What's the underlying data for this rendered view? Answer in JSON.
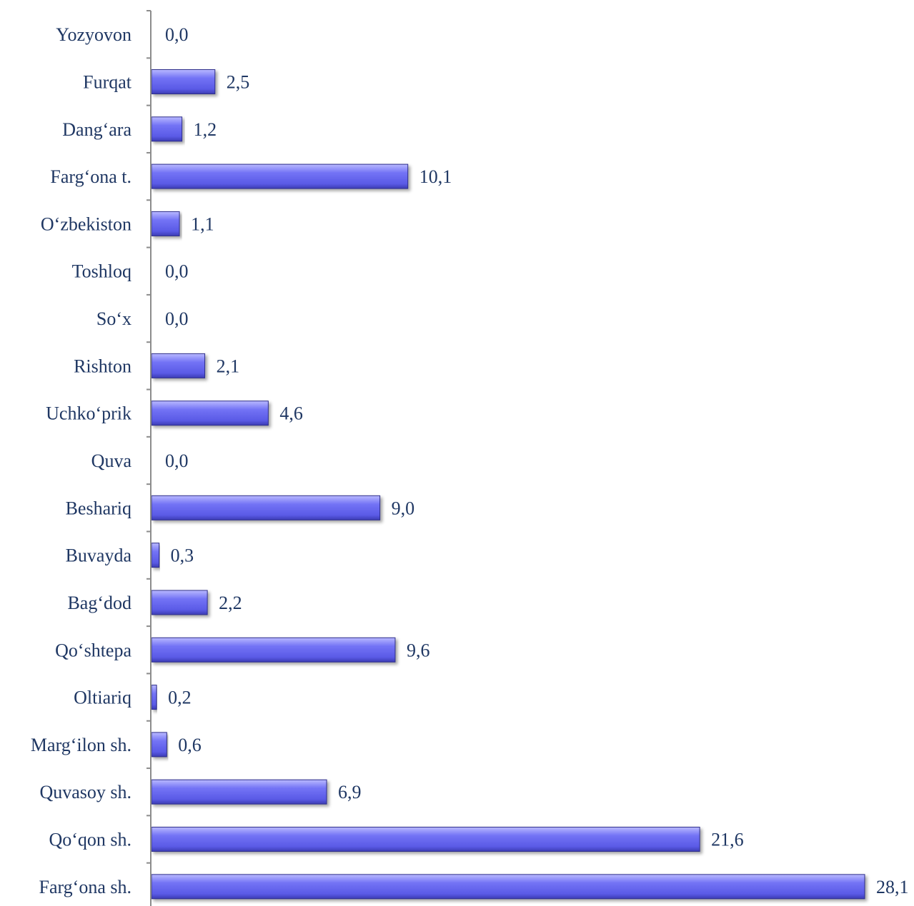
{
  "chart_data": {
    "type": "bar",
    "orientation": "horizontal",
    "title": "",
    "xlabel": "",
    "ylabel": "",
    "xlim": [
      0,
      28.1
    ],
    "grid": false,
    "legend": "none",
    "bar_color": "#6b6bf0",
    "categories": [
      "Farg‘ona sh.",
      "Qo‘qon sh.",
      "Quvasoy sh.",
      "Marg‘ilon sh.",
      "Oltiariq",
      "Qo‘shtepa",
      "Bag‘dod",
      "Buvayda",
      "Beshariq",
      "Quva",
      "Uchko‘prik",
      "Rishton",
      "So‘x",
      "Toshloq",
      "O‘zbekiston",
      "Farg‘ona t.",
      "Dang‘ara",
      "Furqat",
      "Yozyovon"
    ],
    "values": [
      28.1,
      21.6,
      6.9,
      0.6,
      0.2,
      9.6,
      2.2,
      0.3,
      9.0,
      0.0,
      4.6,
      2.1,
      0.0,
      0.0,
      1.1,
      10.1,
      1.2,
      2.5,
      0.0
    ],
    "value_labels": [
      "28,1",
      "21,6",
      "6,9",
      "0,6",
      "0,2",
      "9,6",
      "2,2",
      "0,3",
      "9,0",
      "0,0",
      "4,6",
      "2,1",
      "0,0",
      "0,0",
      "1,1",
      "10,1",
      "1,2",
      "2,5",
      "0,0"
    ]
  }
}
